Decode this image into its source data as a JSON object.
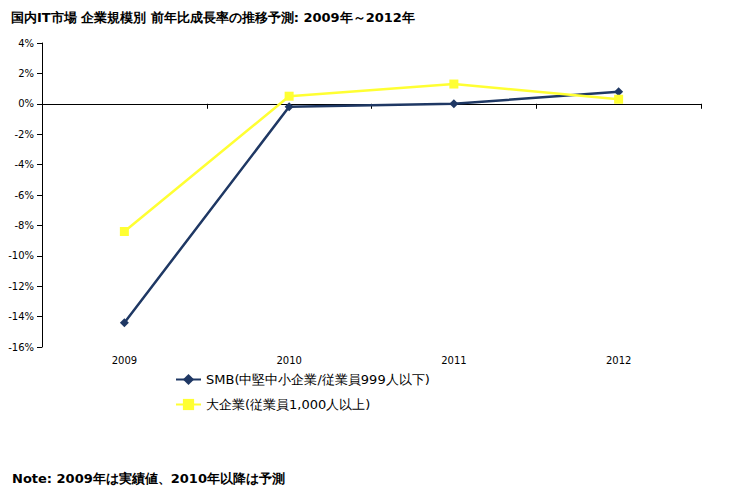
{
  "chart_data": {
    "type": "line",
    "title": "国内IT市場 企業規模別 前年比成長率の推移予測: 2009年～2012年",
    "categories": [
      "2009",
      "2010",
      "2011",
      "2012"
    ],
    "series": [
      {
        "name": "SMB(中堅中小企業/従業員999人以下)",
        "color": "#1f3864",
        "marker": "diamond",
        "values": [
          -14.4,
          -0.2,
          0.0,
          0.8
        ]
      },
      {
        "name": "大企業(従業員1,000人以上)",
        "color": "#ffff33",
        "marker": "square",
        "values": [
          -8.4,
          0.5,
          1.3,
          0.3
        ]
      }
    ],
    "ylim": [
      -16,
      4
    ],
    "yticks": [
      {
        "value": -16,
        "label": "-16%"
      },
      {
        "value": -14,
        "label": "-14%"
      },
      {
        "value": -12,
        "label": "-12%"
      },
      {
        "value": -10,
        "label": "-10%"
      },
      {
        "value": -8,
        "label": "-8%"
      },
      {
        "value": -6,
        "label": "-6%"
      },
      {
        "value": -4,
        "label": "-4%"
      },
      {
        "value": -2,
        "label": "-2%"
      },
      {
        "value": 0,
        "label": "0%"
      },
      {
        "value": 2,
        "label": "2%"
      },
      {
        "value": 4,
        "label": "4%"
      }
    ],
    "grid": false,
    "legend": "bottom",
    "annotations": [
      "Note: 2009年は実績値、2010年以降は予測"
    ]
  }
}
